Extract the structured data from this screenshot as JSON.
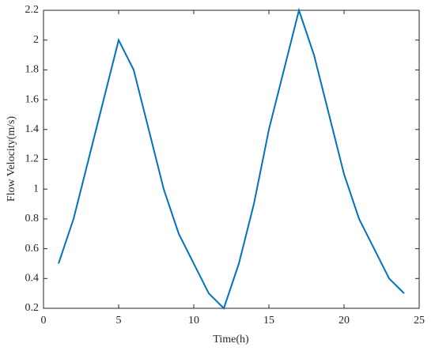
{
  "chart_data": {
    "type": "line",
    "xlabel": "Time(h)",
    "ylabel": "Flow Velocity(m/s)",
    "x": [
      1,
      2,
      3,
      4,
      5,
      6,
      7,
      8,
      9,
      10,
      11,
      12,
      13,
      14,
      15,
      16,
      17,
      18,
      19,
      20,
      21,
      22,
      23,
      24
    ],
    "series": [
      {
        "color": "#0072bd",
        "values": [
          0.5,
          0.8,
          1.2,
          1.6,
          2.0,
          1.8,
          1.4,
          1.0,
          0.7,
          0.5,
          0.3,
          0.2,
          0.5,
          0.9,
          1.4,
          1.8,
          2.2,
          1.9,
          1.5,
          1.1,
          0.8,
          0.6,
          0.4,
          0.3
        ]
      }
    ],
    "xlim": [
      0,
      25
    ],
    "xticks": [
      0,
      5,
      10,
      15,
      20,
      25
    ],
    "ylim": [
      0.2,
      2.2
    ],
    "yticks": [
      0.2,
      0.4,
      0.6,
      0.8,
      1,
      1.2,
      1.4,
      1.6,
      1.8,
      2,
      2.2
    ],
    "grid": false
  }
}
